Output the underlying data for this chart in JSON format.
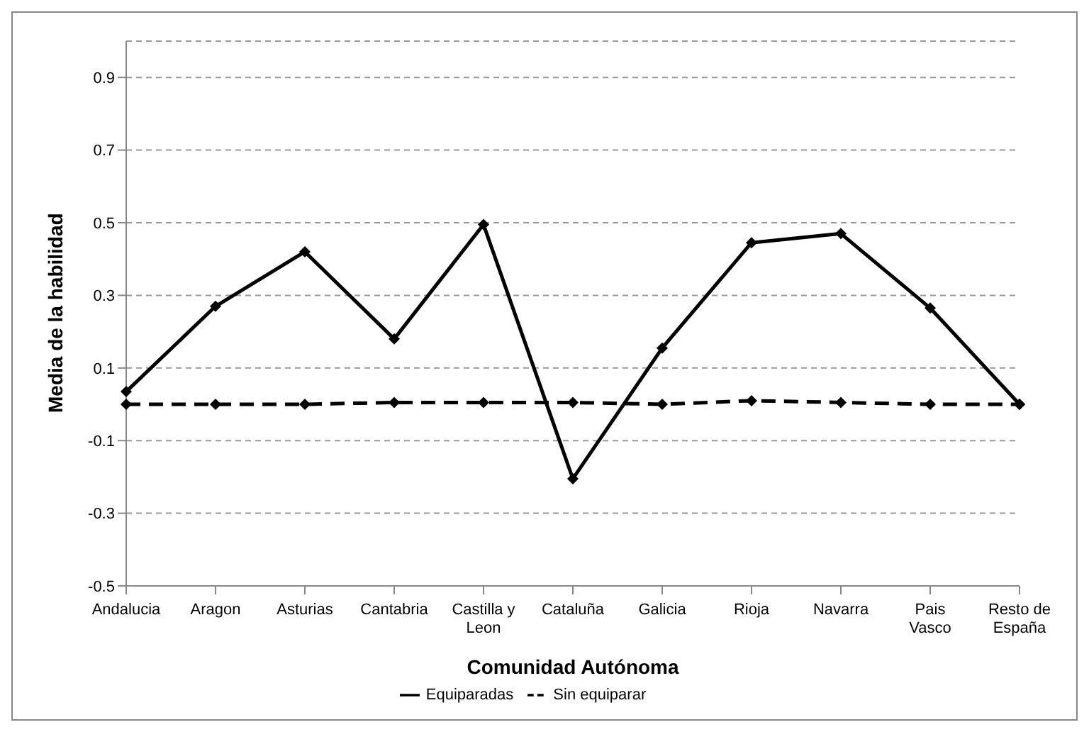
{
  "chart_data": {
    "type": "line",
    "xlabel": "Comunidad Autónoma",
    "ylabel": "Media de la habilidad",
    "categories": [
      "Andalucia",
      "Aragon",
      "Asturias",
      "Cantabria",
      "Castilla y\nLeon",
      "Cataluña",
      "Galicia",
      "Rioja",
      "Navarra",
      "Pais\nVasco",
      "Resto de\nEspaña"
    ],
    "series": [
      {
        "name": "Sin equiparar",
        "color": "#000000",
        "line_style": "dashed",
        "values": [
          0,
          0,
          0,
          0.005,
          0.005,
          0.005,
          0,
          0.01,
          0.005,
          0,
          0
        ]
      },
      {
        "name": "Equiparadas",
        "color": "#000000",
        "line_style": "solid",
        "values": [
          0.035,
          0.27,
          0.42,
          0.18,
          0.495,
          -0.205,
          0.155,
          0.445,
          0.47,
          0.265,
          0
        ]
      }
    ],
    "ylim": [
      -0.5,
      1.0
    ],
    "yticks": [
      -0.5,
      -0.3,
      -0.1,
      0.1,
      0.3,
      0.5,
      0.7,
      0.9
    ],
    "grid": "y",
    "legend": "bottom",
    "marker": "diamond"
  }
}
